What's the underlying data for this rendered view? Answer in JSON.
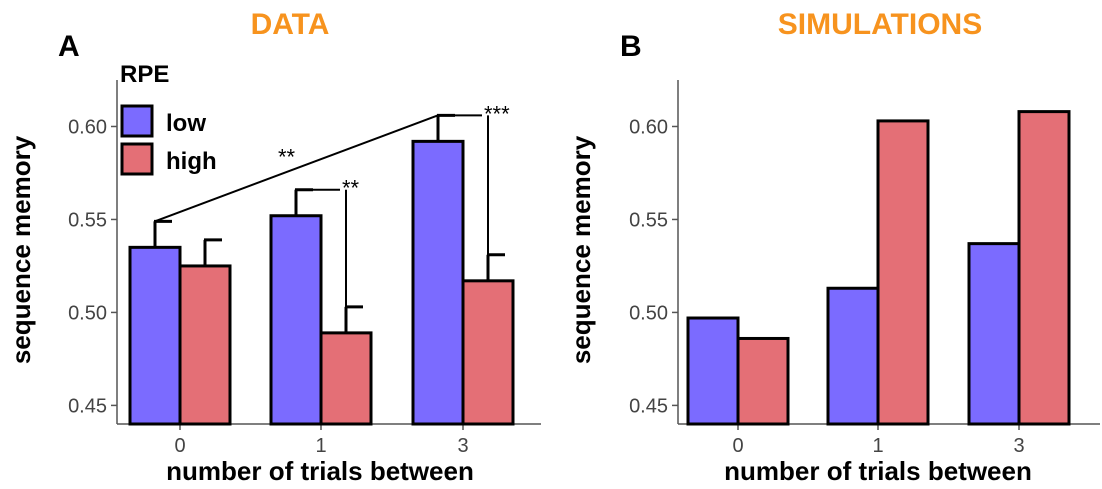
{
  "colors": {
    "low": "#7b6bff",
    "high": "#e46f76",
    "title": "#f7931e"
  },
  "legend": {
    "title": "RPE",
    "entries": [
      "low",
      "high"
    ]
  },
  "chart_data": [
    {
      "type": "bar",
      "panel": "A",
      "title": "DATA",
      "xlabel": "number of trials between",
      "ylabel": "sequence memory",
      "categories": [
        "0",
        "1",
        "3"
      ],
      "ylim": [
        0.44,
        0.625
      ],
      "yticks": [
        "0.45",
        "0.50",
        "0.55",
        "0.60"
      ],
      "series": [
        {
          "name": "low",
          "values": [
            0.535,
            0.552,
            0.592
          ],
          "error": [
            0.014,
            0.014,
            0.014
          ]
        },
        {
          "name": "high",
          "values": [
            0.525,
            0.489,
            0.517
          ],
          "error": [
            0.014,
            0.014,
            0.014
          ]
        }
      ],
      "annotations": [
        {
          "label": "**",
          "type": "trend",
          "from": "0",
          "to": "3"
        },
        {
          "label": "**",
          "type": "pair",
          "category": "1"
        },
        {
          "label": "***",
          "type": "pair",
          "category": "3"
        }
      ],
      "legend_position": "top-left"
    },
    {
      "type": "bar",
      "panel": "B",
      "title": "SIMULATIONS",
      "xlabel": "number of trials between",
      "ylabel": "sequence memory",
      "categories": [
        "0",
        "1",
        "3"
      ],
      "ylim": [
        0.44,
        0.625
      ],
      "yticks": [
        "0.45",
        "0.50",
        "0.55",
        "0.60"
      ],
      "series": [
        {
          "name": "low",
          "values": [
            0.497,
            0.513,
            0.537
          ]
        },
        {
          "name": "high",
          "values": [
            0.486,
            0.603,
            0.608
          ]
        }
      ]
    }
  ]
}
